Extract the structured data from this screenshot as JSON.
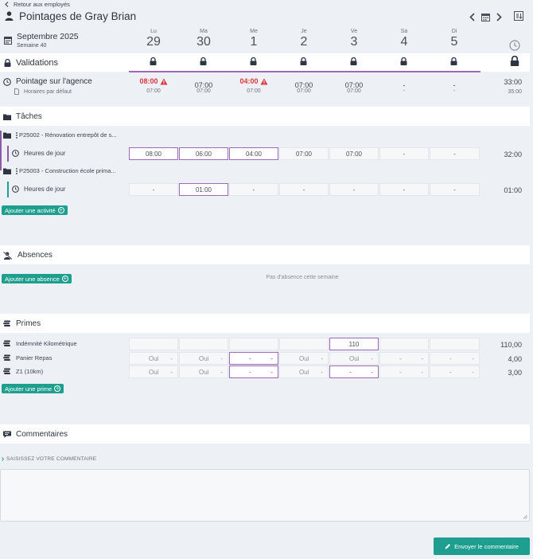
{
  "header": {
    "back_label": "Retour aux employés",
    "title": "Pointages de Gray Brian"
  },
  "week": {
    "month": "Septembre 2025",
    "week_label": "Semaine 40",
    "days": [
      {
        "abbr": "Lu",
        "num": "29"
      },
      {
        "abbr": "Ma",
        "num": "30"
      },
      {
        "abbr": "Me",
        "num": "1"
      },
      {
        "abbr": "Je",
        "num": "2"
      },
      {
        "abbr": "Ve",
        "num": "3"
      },
      {
        "abbr": "Sa",
        "num": "4"
      },
      {
        "abbr": "Di",
        "num": "5"
      }
    ]
  },
  "validations": {
    "title": "Validations"
  },
  "pointage": {
    "title": "Pointage sur l'agence",
    "subtitle": "Horaires par défaut",
    "values": [
      "08:00",
      "07:00",
      "04:00",
      "07:00",
      "07:00",
      "-",
      "-"
    ],
    "defaults": [
      "07:00",
      "07:00",
      "07:00",
      "07:00",
      "07:00",
      "-",
      "-"
    ],
    "total": "33:00",
    "total_default": "35:00",
    "alert_color": "#d9363e"
  },
  "taches": {
    "title": "Tâches",
    "projects": [
      {
        "name": "P25002 - Rénovation entrepôt de s...",
        "activity": "Heures de jour",
        "cells": [
          "08:00",
          "06:00",
          "04:00",
          "07:00",
          "07:00",
          "-",
          "-"
        ],
        "total": "32:00"
      },
      {
        "name": "P25003 - Construction école prima...",
        "activity": "Heures de jour",
        "cells": [
          "-",
          "01:00",
          "-",
          "-",
          "-",
          "-",
          "-"
        ],
        "total": "01:00"
      }
    ],
    "add_button": "Ajouter une activité"
  },
  "absences": {
    "title": "Absences",
    "add_button": "Ajouter une absence",
    "empty_text": "Pas d'absence cette semaine"
  },
  "primes": {
    "title": "Primes",
    "rows": [
      {
        "label": "Indémnité Kilométrique",
        "cells": [
          "",
          "",
          "",
          "",
          "110",
          "",
          ""
        ],
        "total": "110,00"
      },
      {
        "label": "Panier Repas",
        "cells": [
          [
            "Oui",
            "-"
          ],
          [
            "Oui",
            "-"
          ],
          [
            "-",
            "-"
          ],
          [
            "Oui",
            "-"
          ],
          [
            "Oui",
            "-"
          ],
          [
            "-",
            "-"
          ],
          [
            "-",
            "-"
          ]
        ],
        "total": "4,00"
      },
      {
        "label": "Z1 (10km)",
        "cells": [
          [
            "Oui",
            "-"
          ],
          [
            "Oui",
            "-"
          ],
          [
            "-",
            "-"
          ],
          [
            "Oui",
            "-"
          ],
          [
            "-",
            "-"
          ],
          [
            "-",
            "-"
          ],
          [
            "-",
            "-"
          ]
        ],
        "total": "3,00"
      }
    ],
    "add_button": "Ajouter une prime"
  },
  "commentaires": {
    "title": "Commentaires",
    "label": "SAISISSEZ VOTRE COMMENTAIRE",
    "send_button": "Envoyer le commentaire"
  },
  "colors": {
    "accent_green": "#1e9e8e",
    "selection_purple": "#9d6ab5",
    "project_bar_purple": "#8e5aa8",
    "project_bar_teal": "#1e9e8e"
  }
}
